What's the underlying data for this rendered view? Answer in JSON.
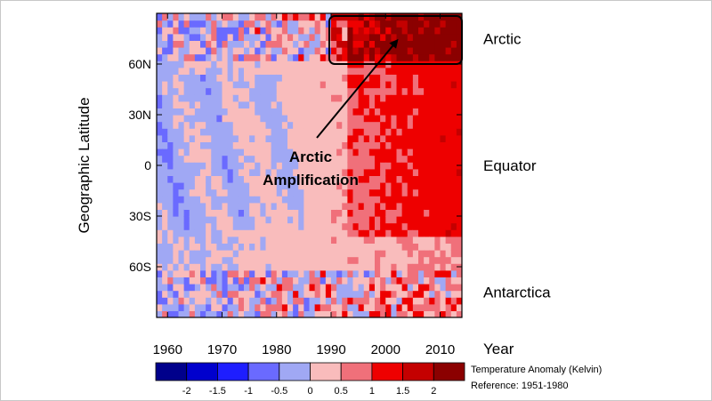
{
  "chart_data": {
    "type": "heatmap",
    "title": "",
    "ylabel": "Geographic Latitude",
    "xlabel": "Year",
    "xlim": [
      1958,
      2014
    ],
    "ylim": [
      -90,
      90
    ],
    "x_ticks": [
      1960,
      1970,
      1980,
      1990,
      2000,
      2010
    ],
    "x_tick_labels": [
      "1960",
      "1970",
      "1980",
      "1990",
      "2000",
      "2010"
    ],
    "y_ticks": [
      60,
      30,
      0,
      -30,
      -60
    ],
    "y_tick_labels": [
      "60N",
      "30N",
      "0",
      "30S",
      "60S"
    ],
    "region_labels": [
      {
        "name": "Arctic",
        "lat": 75
      },
      {
        "name": "Equator",
        "lat": 0
      },
      {
        "name": "Antarctica",
        "lat": -75
      }
    ],
    "annotation": {
      "text_lines": [
        "Arctic",
        "Amplification"
      ],
      "box_years": [
        1990,
        2014
      ],
      "box_lat": [
        60,
        90
      ]
    },
    "colorbar": {
      "title": "Temperature Anomaly (Kelvin)",
      "note": "Reference: 1951-1980",
      "bounds": [
        "-2",
        "-1.5",
        "-1",
        "-0.5",
        "0",
        "0.5",
        "1",
        "1.5",
        "2"
      ],
      "colors": [
        "#00008b",
        "#0000cd",
        "#1e1eff",
        "#6a6aff",
        "#a0a8f4",
        "#f9bcbc",
        "#f0707a",
        "#ee0000",
        "#c40000",
        "#8b0000"
      ]
    },
    "grid": false
  }
}
